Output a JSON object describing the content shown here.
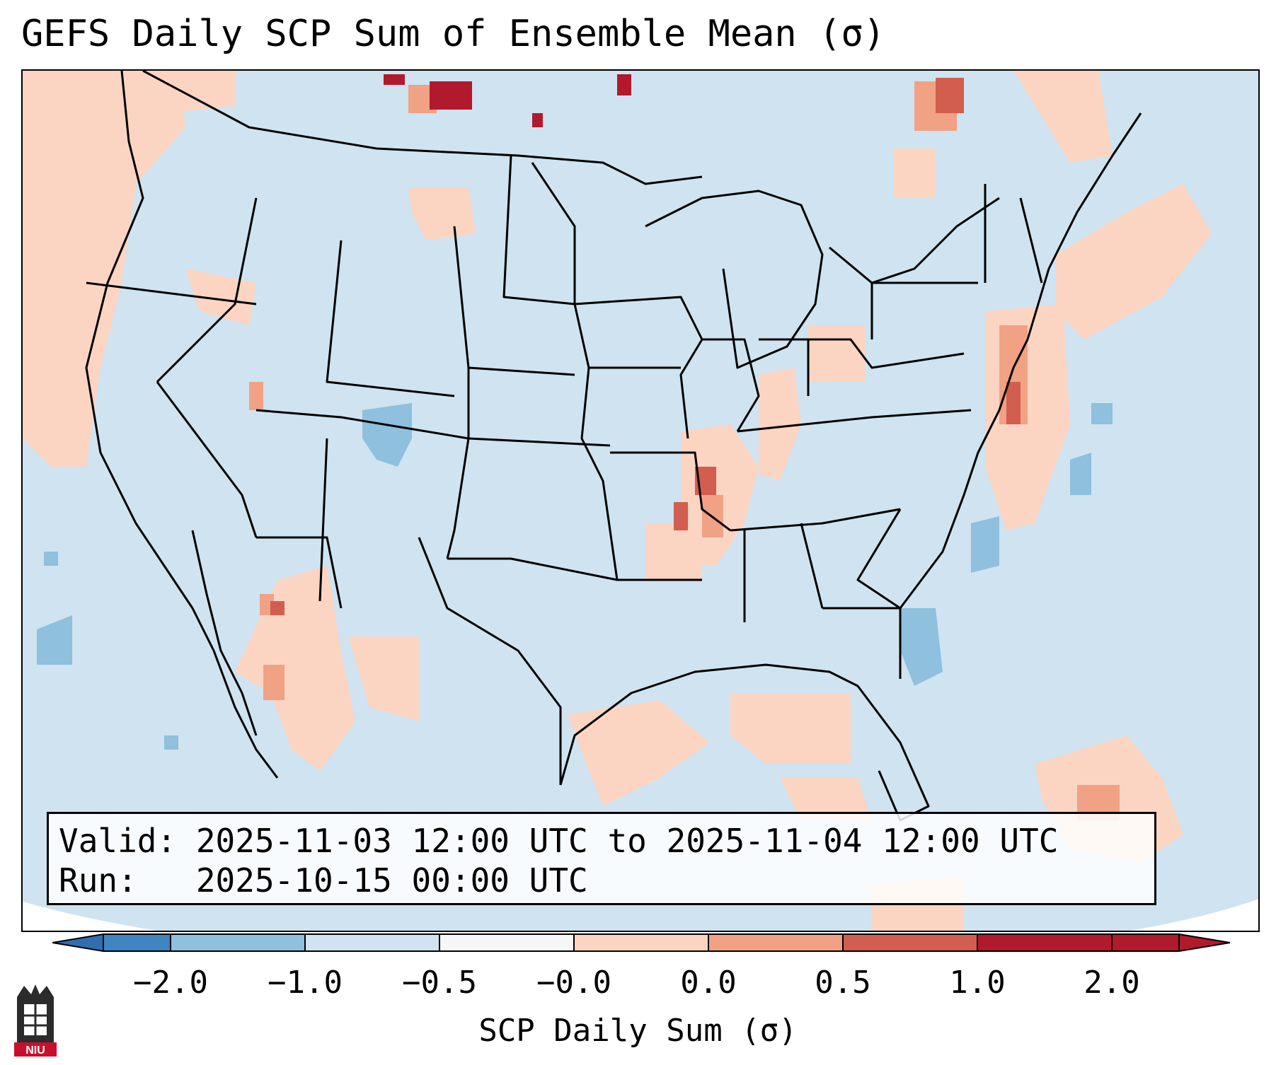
{
  "title": "GEFS Daily SCP Sum of Ensemble Mean (σ)",
  "info": {
    "valid_line": "Valid: 2025-11-03 12:00 UTC to 2025-11-04 12:00 UTC",
    "run_line": "Run:   2025-10-15 00:00 UTC"
  },
  "colorbar": {
    "label": "SCP Daily Sum (σ)",
    "ticks": [
      "−2.0",
      "−1.0",
      "−0.5",
      "−0.0",
      "0.0",
      "0.5",
      "1.0",
      "2.0"
    ],
    "colors": [
      "#3f85c1",
      "#8fc0dd",
      "#cfe3f0",
      "#f6f6f6",
      "#fbd5c2",
      "#f1a184",
      "#d15e4e",
      "#b01a2c"
    ],
    "extend_low_color": "#2f6fb0",
    "extend_high_color": "#b01a2c"
  },
  "map": {
    "background_color": "#cfe3f0",
    "hatch_region_color": "#ffffff"
  },
  "logo": {
    "text": "NIU",
    "color": "#c8102e"
  }
}
